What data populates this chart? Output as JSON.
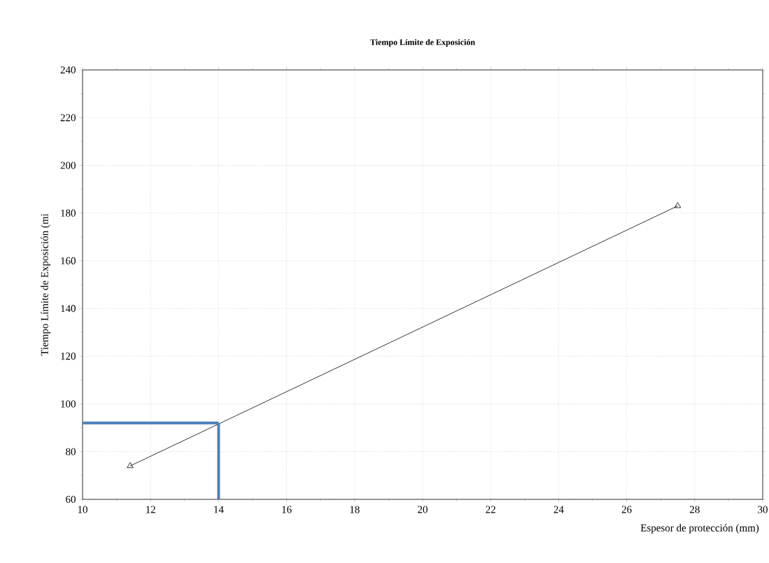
{
  "chart_data": {
    "type": "line",
    "title": "Tiempo Límite de Exposición",
    "xlabel": "Espesor de protección (mm)",
    "ylabel": "Tiempo Límite de Exposición (mi",
    "series": [
      {
        "x": [
          11.4,
          27.5
        ],
        "values": [
          74,
          183
        ],
        "color": "#000000"
      }
    ],
    "marker": "triangle",
    "grid": true,
    "xlim": [
      10,
      30
    ],
    "xticks": [
      10,
      12,
      14,
      16,
      18,
      20,
      22,
      24,
      26,
      28,
      30
    ],
    "ylim": [
      60,
      240
    ],
    "yticks": [
      60,
      80,
      100,
      120,
      140,
      160,
      180,
      200,
      220,
      240
    ],
    "ref_lines": [
      {
        "axis": "x",
        "value": 14,
        "color": "#4a7ebb"
      },
      {
        "axis": "y",
        "value": 92,
        "color": "#4a7ebb"
      }
    ]
  }
}
